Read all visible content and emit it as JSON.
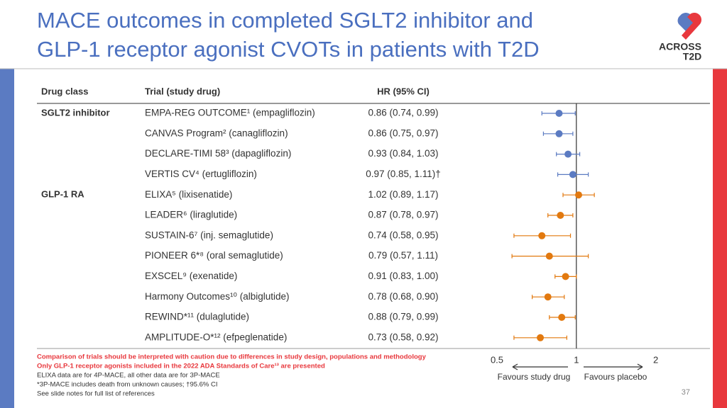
{
  "header": {
    "title_lines": [
      "MACE outcomes in completed SGLT2 inhibitor and",
      "GLP-1 receptor agonist CVOTs in patients with T2D"
    ],
    "logo_top": "ACROSS",
    "logo_bottom": "T2D"
  },
  "chart_data": {
    "type": "forest",
    "columns": [
      "Drug class",
      "Trial (study drug)",
      "HR (95% CI)"
    ],
    "series": [
      {
        "name": "SGLT2 inhibitor",
        "color": "#5b7bc2",
        "categories": [
          "EMPA-REG OUTCOME¹ (empagliflozin)",
          "CANVAS Program² (canagliflozin)",
          "DECLARE-TIMI 58³ (dapagliflozin)",
          "VERTIS CV⁴ (ertugliflozin)"
        ],
        "values": [
          0.86,
          0.86,
          0.93,
          0.97
        ],
        "lower": [
          0.74,
          0.75,
          0.84,
          0.85
        ],
        "upper": [
          0.99,
          0.97,
          1.03,
          1.11
        ],
        "value_labels": [
          "0.86 (0.74, 0.99)",
          "0.86 (0.75, 0.97)",
          "0.93 (0.84, 1.03)",
          "0.97 (0.85, 1.11)†"
        ]
      },
      {
        "name": "GLP-1 RA",
        "color": "#e2790f",
        "categories": [
          "ELIXA⁵ (lixisenatide)",
          "LEADER⁶ (liraglutide)",
          "SUSTAIN-6⁷ (inj. semaglutide)",
          "PIONEER 6*⁸ (oral semaglutide)",
          "EXSCEL⁹ (exenatide)",
          "Harmony Outcomes¹⁰ (albiglutide)",
          "REWIND*¹¹ (dulaglutide)",
          "AMPLITUDE-O*¹² (efpeglenatide)"
        ],
        "values": [
          1.02,
          0.87,
          0.74,
          0.79,
          0.91,
          0.78,
          0.88,
          0.73
        ],
        "lower": [
          0.89,
          0.78,
          0.58,
          0.57,
          0.83,
          0.68,
          0.79,
          0.58
        ],
        "upper": [
          1.17,
          0.97,
          0.95,
          1.11,
          1.0,
          0.9,
          0.99,
          0.92
        ],
        "value_labels": [
          "1.02 (0.89, 1.17)",
          "0.87 (0.78, 0.97)",
          "0.74 (0.58, 0.95)",
          "0.79 (0.57, 1.11)",
          "0.91 (0.83, 1.00)",
          "0.78 (0.68, 0.90)",
          "0.88 (0.79, 0.99)",
          "0.73 (0.58, 0.92)"
        ]
      }
    ],
    "xlim": [
      0.5,
      2.75
    ],
    "log_scale": true,
    "xticks": [
      0.5,
      1,
      2
    ],
    "reference_line": 1,
    "favours": [
      "Favours study drug",
      "Favours placebo"
    ]
  },
  "footnotes": {
    "warnings": [
      "Comparison of trials should be interpreted with caution due to differences in study design, populations and methodology",
      "Only GLP-1 receptor agonists included in the 2022 ADA Standards of Care¹³ are presented"
    ],
    "notes": [
      "ELIXA data are for 4P-MACE, all other data are for 3P-MACE",
      "*3P-MACE includes death from unknown causes; †95.6% CI",
      "See slide notes for full list of references"
    ]
  },
  "page_number": "37"
}
